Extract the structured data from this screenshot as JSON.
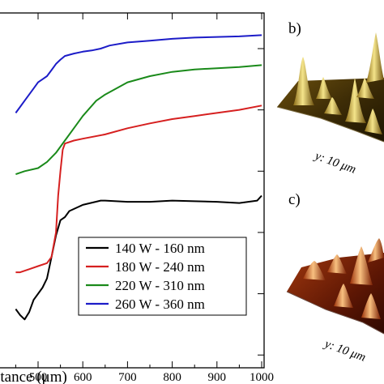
{
  "chart_data": [
    {
      "type": "line",
      "xlabel": "Distance (μm)",
      "xlim": [
        450,
        1000
      ],
      "x_ticks": [
        500,
        600,
        700,
        800,
        900,
        1000
      ],
      "x_tick_labels": [
        "500",
        "600",
        "700",
        "800",
        "900",
        "1000"
      ],
      "y_ticks": [
        0,
        1,
        2,
        3,
        4,
        5
      ],
      "ylim": [
        0.55,
        5.6
      ],
      "grid": false,
      "legend_position": "bottom-right",
      "series": [
        {
          "name": "140 W - 160 nm",
          "color": "#000000",
          "x": [
            450,
            460,
            470,
            480,
            490,
            500,
            510,
            520,
            530,
            540,
            550,
            560,
            570,
            600,
            640,
            650,
            700,
            750,
            800,
            850,
            900,
            950,
            990,
            1000
          ],
          "y": [
            1.35,
            1.25,
            1.18,
            1.3,
            1.5,
            1.6,
            1.7,
            1.85,
            2.2,
            2.55,
            2.8,
            2.85,
            2.95,
            3.05,
            3.12,
            3.12,
            3.1,
            3.1,
            3.12,
            3.11,
            3.1,
            3.08,
            3.12,
            3.2
          ]
        },
        {
          "name": "180 W - 240 nm",
          "color": "#d62020",
          "x": [
            450,
            460,
            480,
            500,
            520,
            530,
            540,
            545,
            550,
            555,
            560,
            580,
            600,
            650,
            700,
            750,
            800,
            850,
            900,
            950,
            1000
          ],
          "y": [
            1.95,
            1.95,
            2.0,
            2.05,
            2.1,
            2.2,
            2.6,
            3.2,
            3.6,
            3.95,
            4.05,
            4.1,
            4.13,
            4.2,
            4.3,
            4.38,
            4.45,
            4.5,
            4.55,
            4.6,
            4.67
          ]
        },
        {
          "name": "220 W - 310 nm",
          "color": "#1a8a1a",
          "x": [
            450,
            470,
            500,
            520,
            540,
            560,
            580,
            600,
            630,
            650,
            700,
            750,
            800,
            850,
            900,
            950,
            1000
          ],
          "y": [
            3.55,
            3.6,
            3.65,
            3.75,
            3.9,
            4.1,
            4.3,
            4.5,
            4.75,
            4.85,
            5.05,
            5.15,
            5.22,
            5.26,
            5.28,
            5.3,
            5.33
          ]
        },
        {
          "name": "260 W - 360 nm",
          "color": "#1c1cc8",
          "x": [
            450,
            460,
            470,
            480,
            490,
            500,
            510,
            520,
            530,
            540,
            550,
            560,
            580,
            600,
            620,
            640,
            660,
            700,
            750,
            800,
            850,
            900,
            950,
            1000
          ],
          "y": [
            4.55,
            4.65,
            4.75,
            4.85,
            4.95,
            5.05,
            5.1,
            5.15,
            5.25,
            5.35,
            5.42,
            5.48,
            5.52,
            5.55,
            5.57,
            5.6,
            5.65,
            5.7,
            5.73,
            5.76,
            5.78,
            5.79,
            5.8,
            5.82
          ]
        }
      ]
    },
    {
      "type": "surface",
      "panel_label": "b)",
      "axis_label": "y: 10 μm",
      "palette": [
        "#3a2a05",
        "#7a5a10",
        "#c8a530",
        "#f0e070"
      ]
    },
    {
      "type": "surface",
      "panel_label": "c)",
      "axis_label": "y: 10 μm",
      "palette": [
        "#4a0c02",
        "#8c2a08",
        "#d0601c",
        "#f6b070"
      ]
    }
  ]
}
